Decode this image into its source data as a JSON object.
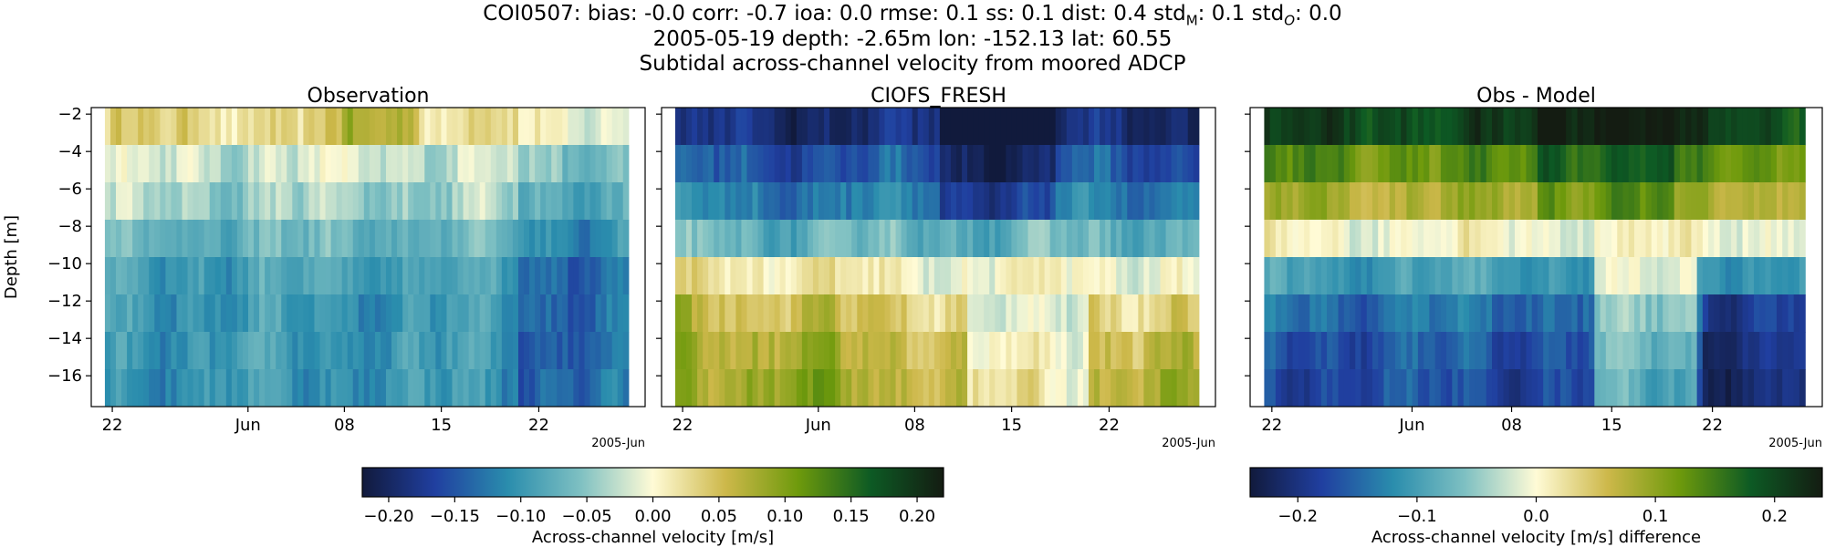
{
  "titles": {
    "line1": "COI0507: bias: -0.0  corr: -0.7  ioa: 0.0  rmse: 0.1  ss: 0.1  dist: 0.4  std_M: 0.1  std_O: 0.0",
    "line1_prefix": "COI0507: bias: -0.0  corr: -0.7  ioa: 0.0  rmse: 0.1  ss: 0.1  dist: 0.4  std",
    "line1_subM": "M",
    "line1_mid": ": 0.1  std",
    "line1_subO": "O",
    "line1_suffix": ": 0.0",
    "line2": "2005-05-19 depth: -2.65m lon: -152.13 lat: 60.55",
    "line3": "Subtidal across-channel velocity from moored ADCP"
  },
  "colors": {
    "colormap": [
      "#111a3c",
      "#203fa0",
      "#2a8dad",
      "#7ec0c2",
      "#fffbd6",
      "#cdb84a",
      "#6e9a0c",
      "#0d5a24",
      "#141c12"
    ]
  },
  "chart_data": [
    {
      "type": "heatmap",
      "title": "Observation",
      "ylabel": "Depth [m]",
      "xlabel": "",
      "x_tick_labels": [
        "22",
        "Jun",
        "08",
        "15",
        "22"
      ],
      "x_offset_label": "2005-Jun",
      "y_ticks": [
        -2,
        -4,
        -6,
        -8,
        -10,
        -12,
        -14,
        -16
      ],
      "depth_bins": [
        -2.65,
        -4.65,
        -6.65,
        -8.65,
        -10.65,
        -12.65,
        -14.65,
        -16.65
      ],
      "time_range": [
        "2005-05-19",
        "2005-06-27"
      ],
      "clim": [
        -0.22,
        0.22
      ],
      "profile_by_depth": [
        0.03,
        -0.02,
        -0.04,
        -0.07,
        -0.09,
        -0.1,
        -0.1,
        -0.1
      ]
    },
    {
      "type": "heatmap",
      "title": "CIOFS_FRESH",
      "x_tick_labels": [
        "22",
        "Jun",
        "08",
        "15",
        "22"
      ],
      "x_offset_label": "2005-Jun",
      "y_ticks": [
        -2,
        -4,
        -6,
        -8,
        -10,
        -12,
        -14,
        -16
      ],
      "depth_bins": [
        -2.65,
        -4.65,
        -6.65,
        -8.65,
        -10.65,
        -12.65,
        -14.65,
        -16.65
      ],
      "time_range": [
        "2005-05-19",
        "2005-06-27"
      ],
      "clim": [
        -0.22,
        0.22
      ],
      "profile_by_depth": [
        -0.19,
        -0.15,
        -0.12,
        -0.07,
        0.0,
        0.04,
        0.06,
        0.07
      ]
    },
    {
      "type": "heatmap",
      "title": "Obs - Model",
      "x_tick_labels": [
        "22",
        "Jun",
        "08",
        "15",
        "22"
      ],
      "x_offset_label": "2005-Jun",
      "y_ticks": [
        -2,
        -4,
        -6,
        -8,
        -10,
        -12,
        -14,
        -16
      ],
      "depth_bins": [
        -2.65,
        -4.65,
        -6.65,
        -8.65,
        -10.65,
        -12.65,
        -14.65,
        -16.65
      ],
      "time_range": [
        "2005-05-19",
        "2005-06-27"
      ],
      "clim": [
        -0.24,
        0.24
      ],
      "profile_by_depth": [
        0.2,
        0.13,
        0.08,
        0.0,
        -0.1,
        -0.14,
        -0.16,
        -0.17
      ]
    }
  ],
  "colorbars": [
    {
      "label": "Across-channel velocity [m/s]",
      "range": [
        -0.22,
        0.22
      ],
      "ticks": [
        -0.2,
        -0.15,
        -0.1,
        -0.05,
        0.0,
        0.05,
        0.1,
        0.15,
        0.2
      ],
      "tick_labels": [
        "−0.20",
        "−0.15",
        "−0.10",
        "−0.05",
        "0.00",
        "0.05",
        "0.10",
        "0.15",
        "0.20"
      ]
    },
    {
      "label": "Across-channel velocity [m/s] difference",
      "range": [
        -0.24,
        0.24
      ],
      "ticks": [
        -0.2,
        -0.1,
        0.0,
        0.1,
        0.2
      ],
      "tick_labels": [
        "−0.2",
        "−0.1",
        "0.0",
        "0.1",
        "0.2"
      ]
    }
  ]
}
